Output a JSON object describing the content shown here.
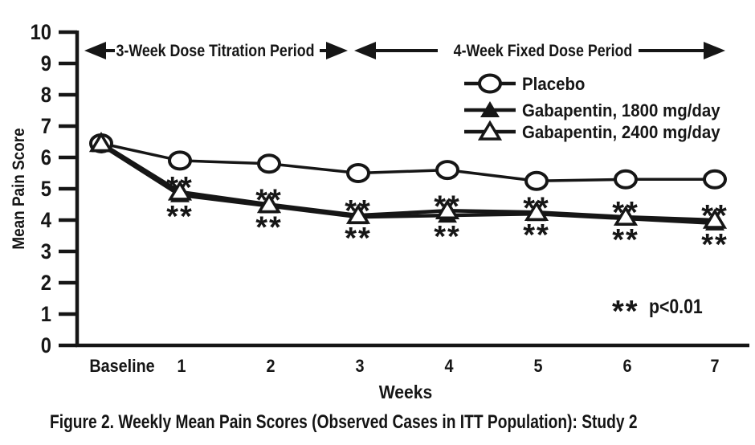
{
  "figure": {
    "caption": "Figure 2. Weekly Mean Pain Scores (Observed Cases in ITT Population): Study 2"
  },
  "chart_data": {
    "type": "line",
    "title": "",
    "xlabel": "Weeks",
    "ylabel": "Mean Pain Score",
    "ylim": [
      0,
      10
    ],
    "yticks": [
      0,
      1,
      2,
      3,
      4,
      5,
      6,
      7,
      8,
      9,
      10
    ],
    "categories": [
      "Baseline",
      "1",
      "2",
      "3",
      "4",
      "5",
      "6",
      "7"
    ],
    "series": [
      {
        "name": "Placebo",
        "marker": "open-circle",
        "values": [
          6.45,
          5.9,
          5.8,
          5.5,
          5.6,
          5.25,
          5.3,
          5.3
        ]
      },
      {
        "name": "Gabapentin, 1800 mg/day",
        "marker": "filled-triangle",
        "values": [
          6.4,
          4.8,
          4.45,
          4.1,
          4.15,
          4.2,
          4.05,
          3.9
        ]
      },
      {
        "name": "Gabapentin, 2400 mg/day",
        "marker": "open-triangle",
        "values": [
          6.45,
          4.9,
          4.5,
          4.15,
          4.3,
          4.25,
          4.1,
          4.0
        ]
      }
    ],
    "grid": false,
    "legend_position": "upper-right",
    "annotations": {
      "periods": [
        {
          "label": "3-Week Dose Titration Period"
        },
        {
          "label": "4-Week Fixed Dose Period"
        }
      ],
      "significance_marker": "**",
      "significant_weeks": [
        "1",
        "2",
        "3",
        "4",
        "5",
        "6",
        "7"
      ],
      "p_note": {
        "marker": "**",
        "text": "p<0.01"
      }
    },
    "colors": {
      "foreground": "#161616",
      "background": "#ffffff"
    }
  }
}
